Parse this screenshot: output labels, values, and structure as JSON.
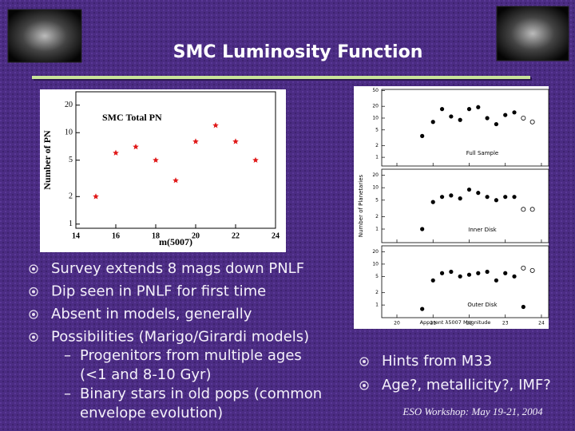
{
  "title": "SMC Luminosity Function",
  "chart_data": [
    {
      "type": "scatter",
      "title": "SMC Total PN",
      "xlabel": "m(5007)",
      "ylabel": "Number of PN",
      "log_y": true,
      "color": "#e01818",
      "x": [
        15,
        16,
        17,
        18,
        19,
        20,
        21,
        22,
        23
      ],
      "values": [
        2,
        6,
        7,
        5,
        3,
        8,
        12,
        8,
        5
      ],
      "xlim": [
        14,
        24
      ],
      "xticks": [
        14,
        16,
        18,
        20,
        22,
        24
      ],
      "ylim": [
        0.9,
        28
      ],
      "yticks": [
        1,
        2,
        5,
        10,
        20
      ]
    },
    {
      "type": "scatter_panels",
      "xlabel": "Apparent λ5007 Magnitude",
      "ylabel": "Number of Planetaries",
      "log_y": true,
      "color": "#000000",
      "xlim": [
        19.58,
        24.2
      ],
      "xticks": [
        20,
        21,
        22,
        23,
        24
      ],
      "panels": [
        {
          "label": "Full Sample",
          "ylim": [
            0.6,
            54
          ],
          "yticks": [
            1,
            2,
            5,
            10,
            20,
            50
          ],
          "x": [
            20.7,
            21,
            21.25,
            21.5,
            21.75,
            22,
            22.25,
            22.5,
            22.75,
            23,
            23.25
          ],
          "values": [
            3.5,
            8,
            17,
            11,
            9,
            17,
            19,
            10,
            7,
            12,
            14
          ],
          "open_x": [
            23.5,
            23.75
          ],
          "open_values": [
            10,
            8
          ]
        },
        {
          "label": "Inner Disk",
          "ylim": [
            0.47,
            28
          ],
          "yticks": [
            1,
            2,
            5,
            10,
            20
          ],
          "x": [
            20.7,
            21,
            21.25,
            21.5,
            21.75,
            22,
            22.25,
            22.5,
            22.75,
            23,
            23.25
          ],
          "values": [
            1,
            4.5,
            6,
            6.5,
            5.5,
            9,
            7.5,
            6,
            5,
            6,
            6
          ],
          "open_x": [
            23.5,
            23.75
          ],
          "open_values": [
            3,
            3
          ]
        },
        {
          "label": "Outer Disk",
          "ylim": [
            0.49,
            28
          ],
          "yticks": [
            1,
            2,
            5,
            10,
            20
          ],
          "x": [
            20.7,
            21,
            21.25,
            21.5,
            21.75,
            22,
            22.25,
            22.5,
            22.75,
            23,
            23.25,
            23.5
          ],
          "values": [
            0.8,
            4,
            6,
            6.5,
            5,
            5.5,
            6,
            6.5,
            4,
            6,
            5,
            0.9
          ],
          "open_x": [
            23.5,
            23.75
          ],
          "open_values": [
            8,
            7
          ]
        }
      ]
    }
  ],
  "bullets_left": [
    "Survey extends 8 mags down PNLF",
    "Dip seen in PNLF for first time",
    "Absent in models, generally",
    "Possibilities (Marigo/Girardi models)"
  ],
  "sub_bullets": [
    [
      "Progenitors from multiple ages",
      "(<1 and 8-10 Gyr)"
    ],
    [
      "Binary stars in old pops (common",
      "envelope evolution)"
    ]
  ],
  "bullets_right": [
    "Hints from M33",
    "Age?, metallicity?, IMF?"
  ],
  "footer": "ESO Workshop: May 19-21, 2004"
}
